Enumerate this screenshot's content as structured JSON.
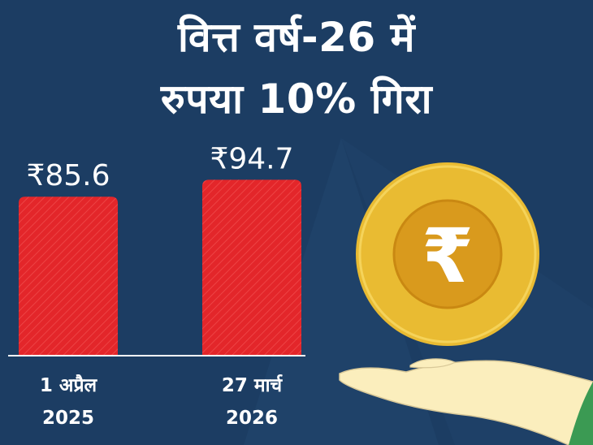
{
  "colors": {
    "background": "#1c3d63",
    "background_light": "#22476f",
    "bar": "#e3262a",
    "bar_stripe": "#f04a4b",
    "axis": "#ffffff",
    "coin_outer": "#e9bb32",
    "coin_inner": "#d99a1d",
    "hand": "#fbeebd",
    "sleeve": "#3b9a53"
  },
  "title": {
    "line1": "वित्त वर्ष-26 में",
    "line2": "रुपया 10% गिरा"
  },
  "illustration": {
    "coin_symbol": "₹",
    "coin_icon": "rupee-coin-icon",
    "hand_icon": "open-hand-icon"
  },
  "chart_data": {
    "type": "bar",
    "categories": [
      "1 अप्रैल 2025",
      "27 मार्च 2026"
    ],
    "category_lines": [
      [
        "1 अप्रैल",
        "2025"
      ],
      [
        "27 मार्च",
        "2026"
      ]
    ],
    "values": [
      85.6,
      94.7
    ],
    "value_labels": [
      "₹85.6",
      "₹94.7"
    ],
    "ylim": [
      0,
      115
    ],
    "grid": false,
    "legend": "none",
    "xlabel": "",
    "ylabel": ""
  }
}
